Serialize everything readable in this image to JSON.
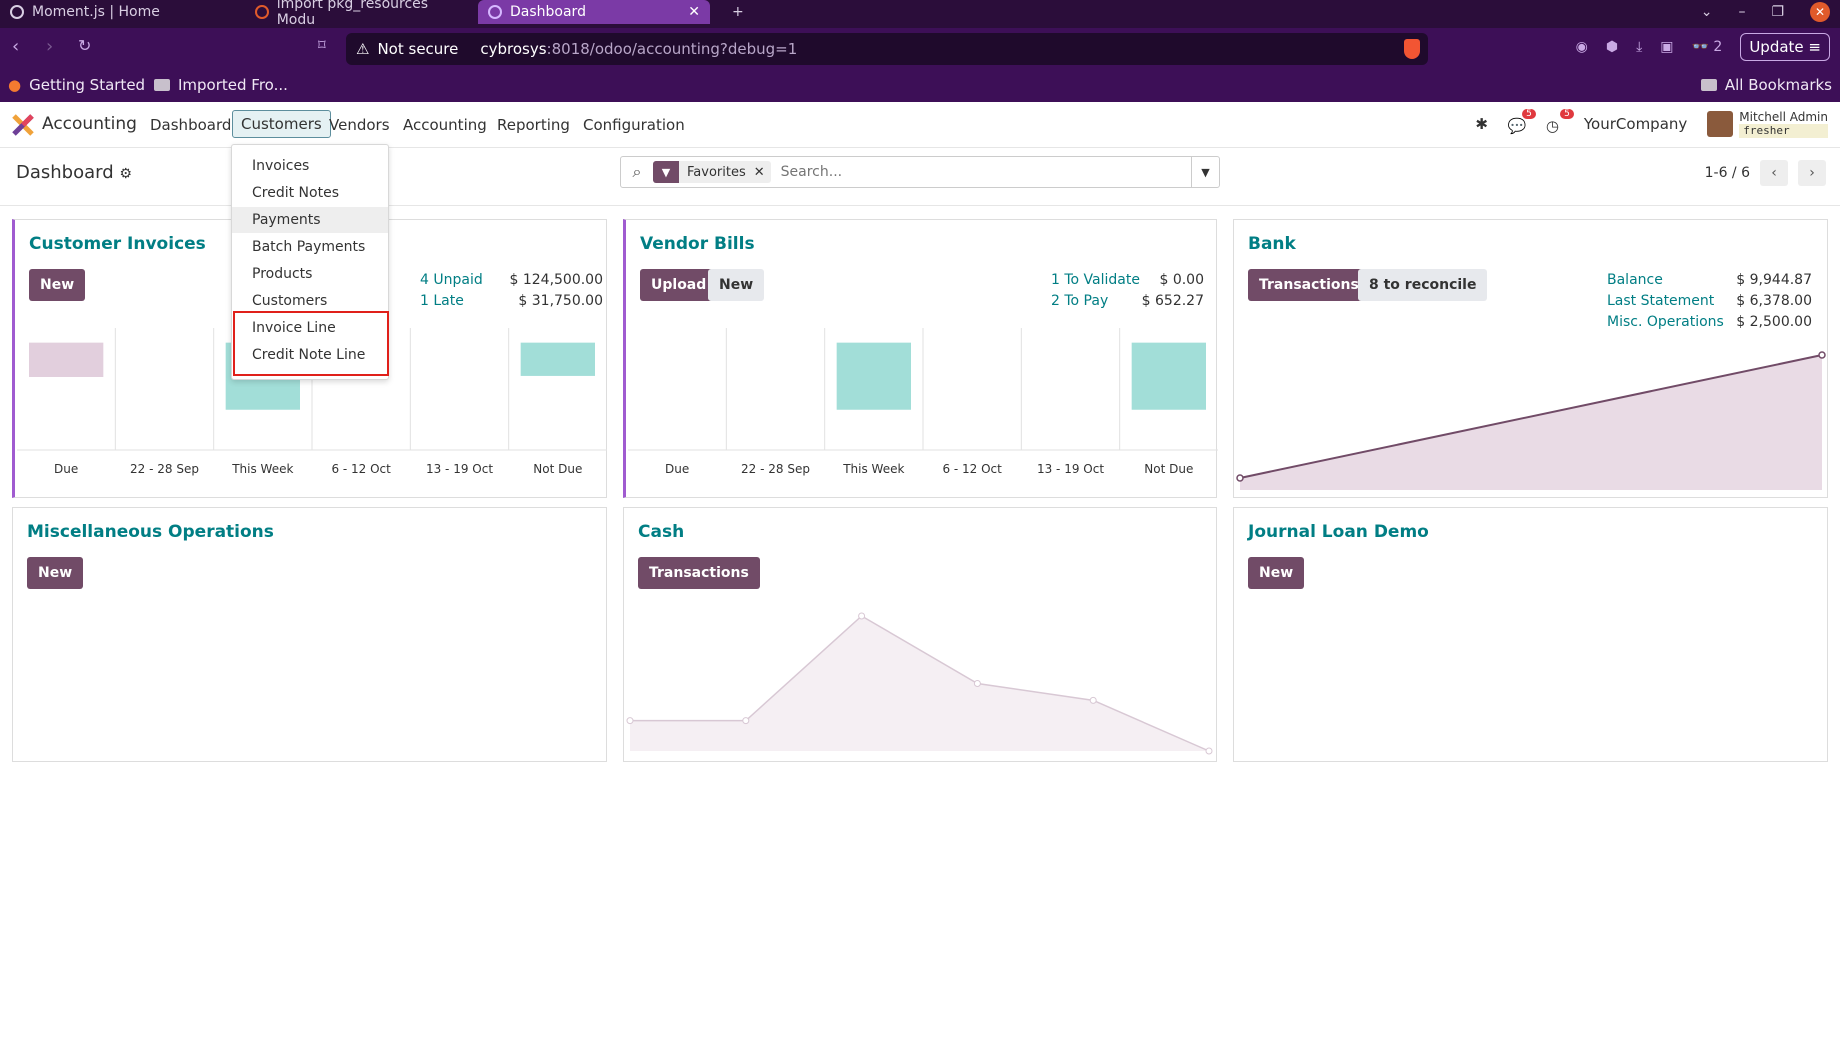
{
  "browser": {
    "tabs": [
      {
        "title": "Moment.js | Home"
      },
      {
        "title": "import pkg_resources Modu"
      },
      {
        "title": "Dashboard"
      }
    ],
    "url_security": "Not secure",
    "url_host": "cybrosys",
    "url_rest": ":8018/odoo/accounting?debug=1",
    "extensions_count": "2",
    "update_label": "Update",
    "bookmarks": [
      "Getting Started",
      "Imported Fro..."
    ],
    "all_bookmarks": "All Bookmarks"
  },
  "app": {
    "name": "Accounting",
    "menu": [
      "Dashboard",
      "Customers",
      "Vendors",
      "Accounting",
      "Reporting",
      "Configuration"
    ],
    "chat_badge": "5",
    "activity_badge": "5",
    "company": "YourCompany",
    "user_name": "Mitchell Admin",
    "db_name": "fresher"
  },
  "control_panel": {
    "breadcrumb": "Dashboard",
    "facet_label": "Favorites",
    "search_placeholder": "Search...",
    "pager": "1-6 / 6"
  },
  "customers_menu": {
    "items": [
      "Invoices",
      "Credit Notes",
      "Payments",
      "Batch Payments",
      "Products",
      "Customers",
      "Invoice Line",
      "Credit Note Line"
    ],
    "hovered": "Payments",
    "highlighted": [
      "Invoice Line",
      "Credit Note Line"
    ]
  },
  "cards": {
    "customer_invoices": {
      "title": "Customer Invoices",
      "new_label": "New",
      "stats": [
        {
          "label": "4 Unpaid",
          "amount": "$ 124,500.00"
        },
        {
          "label": "1 Late",
          "amount": "$ 31,750.00"
        }
      ]
    },
    "vendor_bills": {
      "title": "Vendor Bills",
      "upload_label": "Upload",
      "new_label": "New",
      "stats": [
        {
          "label": "1 To Validate",
          "amount": "$ 0.00"
        },
        {
          "label": "2 To Pay",
          "amount": "$ 652.27"
        }
      ]
    },
    "bank": {
      "title": "Bank",
      "transactions_label": "Transactions",
      "reconcile_label": "8 to reconcile",
      "stats": [
        {
          "label": "Balance",
          "amount": "$ 9,944.87"
        },
        {
          "label": "Last Statement",
          "amount": "$ 6,378.00"
        },
        {
          "label": "Misc. Operations",
          "amount": "$ 2,500.00"
        }
      ]
    },
    "misc": {
      "title": "Miscellaneous Operations",
      "new_label": "New"
    },
    "cash": {
      "title": "Cash",
      "transactions_label": "Transactions"
    },
    "loan": {
      "title": "Journal Loan Demo",
      "new_label": "New"
    }
  },
  "chart_data": [
    {
      "type": "bar",
      "name": "customer_invoices",
      "categories": [
        "Due",
        "22 - 28 Sep",
        "This Week",
        "6 - 12 Oct",
        "13 - 19 Oct",
        "Not Due"
      ],
      "values": [
        -31750,
        0,
        62000,
        0,
        0,
        30750
      ],
      "colors": {
        "positive": "#a2ded8",
        "past_due": "#e2cfdd"
      }
    },
    {
      "type": "bar",
      "name": "vendor_bills",
      "categories": [
        "Due",
        "22 - 28 Sep",
        "This Week",
        "6 - 12 Oct",
        "13 - 19 Oct",
        "Not Due"
      ],
      "values": [
        0,
        0,
        200,
        0,
        0,
        200
      ],
      "colors": {
        "positive": "#a2ded8"
      }
    },
    {
      "type": "area",
      "name": "bank",
      "values": [
        0,
        9944.87
      ],
      "color": "#714b67"
    },
    {
      "type": "area",
      "name": "cash",
      "values": [
        0.45,
        0.45,
        2.0,
        1.0,
        0.75,
        0.0
      ],
      "color": "#d8c8d4"
    }
  ]
}
